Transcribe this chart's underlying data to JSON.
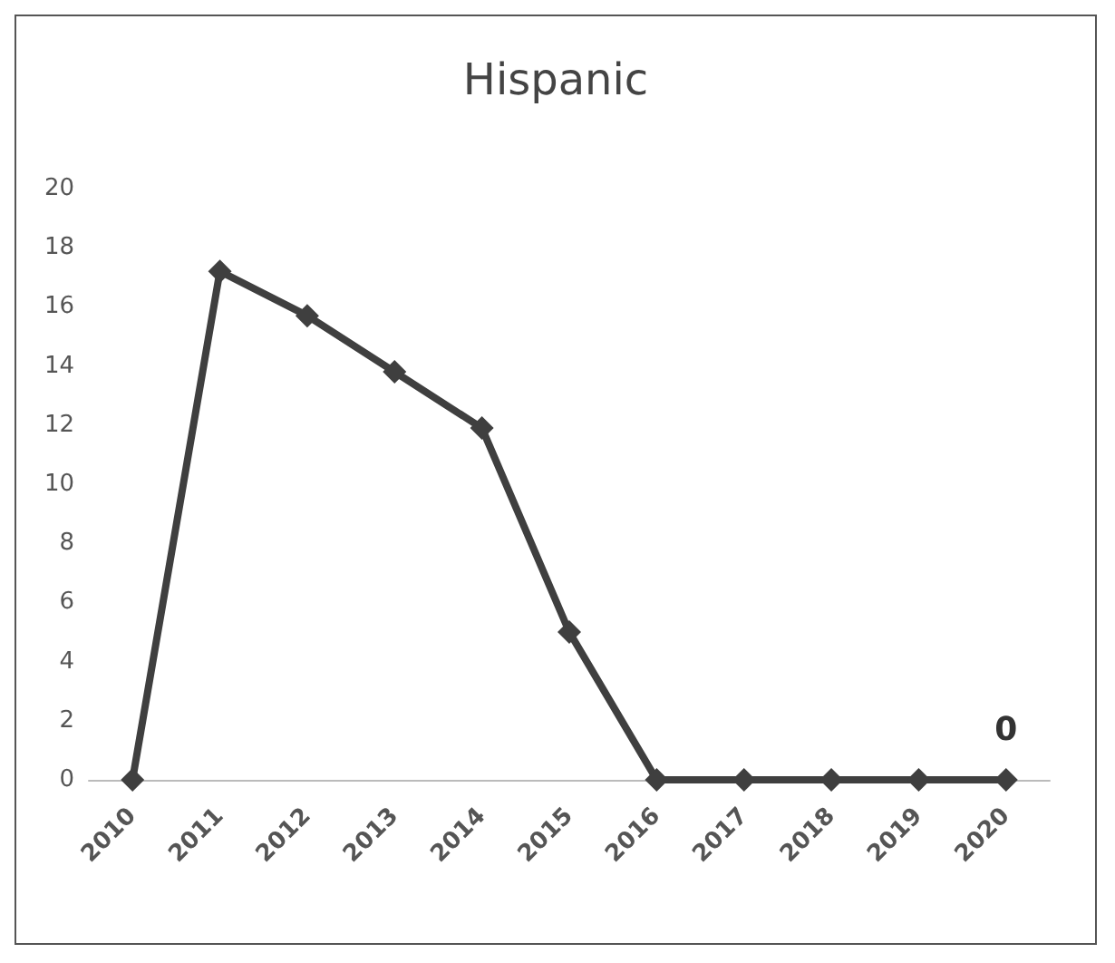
{
  "chart_data": {
    "type": "line",
    "title": "Hispanic",
    "categories": [
      "2010",
      "2011",
      "2012",
      "2013",
      "2014",
      "2015",
      "2016",
      "2017",
      "2018",
      "2019",
      "2020"
    ],
    "series": [
      {
        "color": "#3f3f3f",
        "values": [
          0,
          17.2,
          15.7,
          13.8,
          11.9,
          5,
          0,
          0,
          0,
          0,
          0
        ],
        "value_labels": [
          null,
          null,
          null,
          null,
          null,
          null,
          null,
          null,
          null,
          null,
          "0"
        ]
      }
    ],
    "ylim": [
      0,
      20
    ],
    "yticks": [
      0,
      2,
      4,
      6,
      8,
      10,
      12,
      14,
      16,
      18,
      20
    ],
    "grid": false,
    "marker": "diamond",
    "line_style": "solid"
  }
}
